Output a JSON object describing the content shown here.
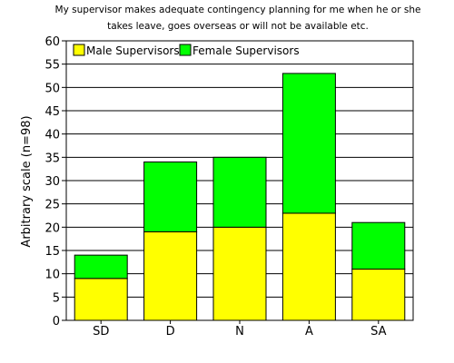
{
  "chart_data": {
    "type": "bar",
    "stacked": true,
    "title_lines": [
      "My supervisor makes adequate contingency planning for me when he or she",
      "takes leave, goes overseas or will not be available etc."
    ],
    "ylabel": "Arbitrary scale (n=98)",
    "xlabel": "",
    "ylim": [
      0,
      60
    ],
    "yticks": [
      "0",
      "5",
      "10",
      "15",
      "20",
      "25",
      "30",
      "35",
      "40",
      "45",
      "50",
      "55",
      "60"
    ],
    "categories": [
      "SD",
      "D",
      "N",
      "A",
      "SA"
    ],
    "series": [
      {
        "name": "Male Supervisors",
        "color": "#ffff00",
        "values": [
          9,
          19,
          20,
          23,
          11
        ]
      },
      {
        "name": "Female Supervisors",
        "color": "#00ff00",
        "values": [
          5,
          15,
          15,
          30,
          10
        ]
      }
    ],
    "grid": true,
    "legend_position": "top-left"
  }
}
